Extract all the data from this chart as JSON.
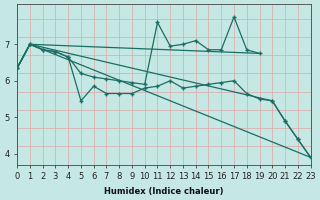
{
  "xlabel": "Humidex (Indice chaleur)",
  "bg_color": "#c5e8e5",
  "line_color": "#1a6e65",
  "grid_color": "#dba8a8",
  "xlim": [
    0,
    23
  ],
  "ylim": [
    3.7,
    8.1
  ],
  "yticks": [
    4,
    5,
    6,
    7
  ],
  "xticks": [
    0,
    1,
    2,
    3,
    4,
    5,
    6,
    7,
    8,
    9,
    10,
    11,
    12,
    13,
    14,
    15,
    16,
    17,
    18,
    19,
    20,
    21,
    22,
    23
  ],
  "line1_x": [
    0,
    1,
    2,
    3,
    4,
    5,
    6,
    7,
    8,
    9,
    10,
    11,
    12,
    13,
    14,
    15,
    16,
    17,
    18,
    19,
    20,
    21,
    22,
    23
  ],
  "line1_y": [
    6.35,
    7.0,
    6.85,
    6.8,
    6.65,
    5.45,
    5.85,
    5.65,
    5.65,
    5.65,
    5.8,
    5.85,
    6.0,
    5.8,
    5.85,
    5.9,
    5.95,
    6.0,
    5.65,
    5.5,
    5.45,
    4.9,
    4.4,
    3.9
  ],
  "line2_x": [
    0,
    1,
    2,
    3,
    4,
    5,
    6,
    7,
    8,
    9,
    10,
    11,
    12,
    13,
    14,
    15,
    16,
    17,
    18,
    19
  ],
  "line2_y": [
    6.35,
    7.0,
    6.85,
    6.8,
    6.65,
    6.2,
    6.1,
    6.05,
    6.0,
    5.95,
    5.9,
    7.6,
    6.95,
    7.0,
    7.1,
    6.85,
    6.85,
    7.75,
    6.85,
    6.75
  ],
  "line3_x": [
    0,
    1,
    19
  ],
  "line3_y": [
    6.35,
    7.0,
    6.75
  ],
  "line4_x": [
    0,
    1,
    20,
    21,
    22,
    23
  ],
  "line4_y": [
    6.35,
    7.0,
    5.45,
    4.9,
    4.4,
    3.9
  ],
  "line5_x": [
    0,
    1,
    23
  ],
  "line5_y": [
    6.35,
    7.0,
    3.9
  ]
}
